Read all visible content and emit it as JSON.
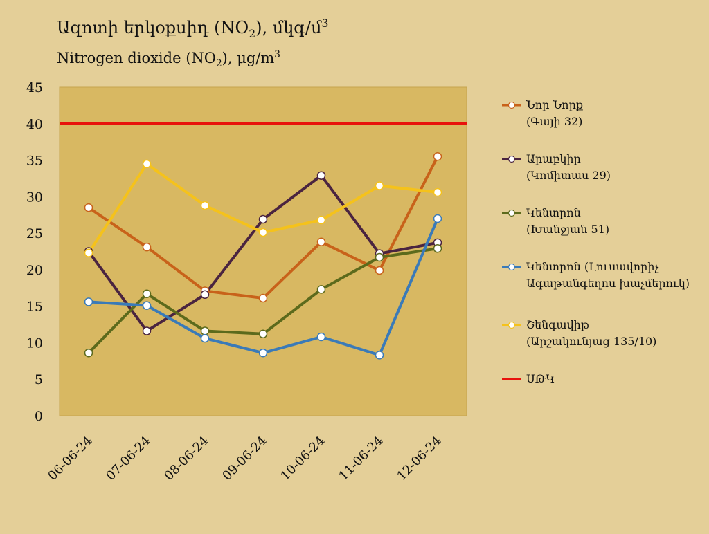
{
  "title": {
    "line1_main": "Ազոտի երկօքսիդ (NO",
    "line1_sub": "2",
    "line1_tail": "), մկգ/մ",
    "line1_sup": "3",
    "line2_main": "Nitrogen dioxide (NO",
    "line2_sub": "2",
    "line2_tail": "), μg/m",
    "line2_sup": "3"
  },
  "chart_data": {
    "type": "line",
    "categories": [
      "06-06-24",
      "07-06-24",
      "08-06-24",
      "09-06-24",
      "10-06-24",
      "11-06-24",
      "12-06-24"
    ],
    "ylim": [
      0,
      45
    ],
    "yticks": [
      0,
      5,
      10,
      15,
      20,
      25,
      30,
      35,
      40,
      45
    ],
    "series": [
      {
        "name": "Նոր Նորք",
        "name2": "(Գայի 32)",
        "color": "#c8621a",
        "values": [
          28.5,
          23.1,
          17.1,
          16.1,
          23.8,
          19.9,
          35.5
        ]
      },
      {
        "name": "Արաբկիր",
        "name2": "(Կոմիտաս 29)",
        "color": "#4a2440",
        "values": [
          22.5,
          11.6,
          16.6,
          26.9,
          32.9,
          22.2,
          23.7
        ]
      },
      {
        "name": "Կենտրոն",
        "name2": "(Խանջյան 51)",
        "color": "#5c6a1c",
        "values": [
          8.6,
          16.7,
          11.6,
          11.2,
          17.3,
          21.7,
          22.9
        ]
      },
      {
        "name": "Կենտրոն (Լուսավորիչ",
        "name2": "Ագաթանգեղոս խաչմերուկ)",
        "color": "#3a7ab8",
        "values": [
          15.6,
          15.1,
          10.6,
          8.6,
          10.8,
          8.3,
          27.0
        ]
      },
      {
        "name": "Շենգավիթ",
        "name2": "(Արշակունյաց 135/10)",
        "color": "#f5c21b",
        "values": [
          22.3,
          34.5,
          28.8,
          25.1,
          26.8,
          31.5,
          30.6
        ]
      }
    ],
    "limit": {
      "name": "ՍԹԿ",
      "value": 40,
      "color": "#e8120c"
    },
    "grid": false,
    "legend_position": "right"
  }
}
